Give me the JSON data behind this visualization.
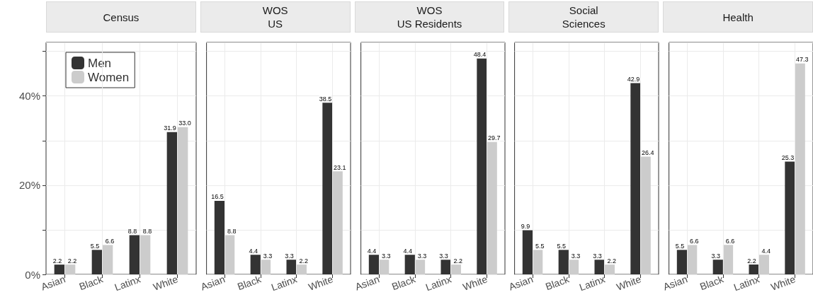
{
  "chart_data": [
    {
      "type": "bar",
      "title": "Census",
      "categories": [
        "Asian",
        "Black",
        "Latinx",
        "White"
      ],
      "series": [
        {
          "name": "Men",
          "color": "#333333",
          "values": [
            2.2,
            5.5,
            8.8,
            31.9
          ],
          "value_labels": [
            "2.2",
            "5.5",
            "8.8",
            "31.9"
          ]
        },
        {
          "name": "Women",
          "color": "#cccccc",
          "values": [
            2.2,
            6.6,
            8.8,
            33.0
          ],
          "value_labels": [
            "2.2",
            "6.6",
            "8.8",
            "33.0"
          ]
        }
      ],
      "ylim": [
        0,
        52
      ],
      "yticks": [
        {
          "value": 0,
          "label": "0%"
        },
        {
          "value": 10,
          "label": null
        },
        {
          "value": 20,
          "label": "20%"
        },
        {
          "value": 30,
          "label": null
        },
        {
          "value": 40,
          "label": "40%"
        }
      ],
      "grid": true,
      "legend": "top left"
    },
    {
      "type": "bar",
      "title": "WOS\nUS",
      "categories": [
        "Asian",
        "Black",
        "Latinx",
        "White"
      ],
      "series": [
        {
          "color": "#333333",
          "values": [
            16.5,
            4.4,
            3.3,
            38.5
          ],
          "value_labels": [
            "16.5",
            "4.4",
            "3.3",
            "38.5"
          ]
        },
        {
          "color": "#cccccc",
          "values": [
            8.8,
            3.3,
            2.2,
            23.1
          ],
          "value_labels": [
            "8.8",
            "3.3",
            "2.2",
            "23.1"
          ]
        }
      ],
      "ylim": [
        0,
        52
      ],
      "yticks": [
        0,
        10,
        20,
        30,
        40
      ],
      "grid": true,
      "tick_labels": "x"
    },
    {
      "type": "bar",
      "title": "WOS\nUS Residents",
      "categories": [
        "Asian",
        "Black",
        "Latinx",
        "White"
      ],
      "series": [
        {
          "color": "#333333",
          "values": [
            4.4,
            4.4,
            3.3,
            48.4
          ],
          "value_labels": [
            "4.4",
            "4.4",
            "3.3",
            "48.4"
          ]
        },
        {
          "color": "#cccccc",
          "values": [
            3.3,
            3.3,
            2.2,
            29.7
          ],
          "value_labels": [
            "3.3",
            "3.3",
            "2.2",
            "29.7"
          ]
        }
      ],
      "ylim": [
        0,
        52
      ],
      "yticks": [
        0,
        10,
        20,
        30,
        40
      ],
      "grid": true,
      "tick_labels": "x"
    },
    {
      "type": "bar",
      "title": "Social\nSciences",
      "categories": [
        "Asian",
        "Black",
        "Latinx",
        "White"
      ],
      "series": [
        {
          "color": "#333333",
          "values": [
            9.9,
            5.5,
            3.3,
            42.9
          ],
          "value_labels": [
            "9.9",
            "5.5",
            "3.3",
            "42.9"
          ]
        },
        {
          "color": "#cccccc",
          "values": [
            5.5,
            3.3,
            2.2,
            26.4
          ],
          "value_labels": [
            "5.5",
            "3.3",
            "2.2",
            "26.4"
          ]
        }
      ],
      "ylim": [
        0,
        52
      ],
      "yticks": [
        0,
        10,
        20,
        30,
        40
      ],
      "grid": true,
      "tick_labels": "x"
    },
    {
      "type": "bar",
      "title": "Health",
      "categories": [
        "Asian",
        "Black",
        "Latinx",
        "White"
      ],
      "series": [
        {
          "color": "#333333",
          "values": [
            5.5,
            3.3,
            2.2,
            25.3
          ],
          "value_labels": [
            "5.5",
            "3.3",
            "2.2",
            "25.3"
          ]
        },
        {
          "color": "#cccccc",
          "values": [
            6.6,
            6.6,
            4.4,
            47.3
          ],
          "value_labels": [
            "6.6",
            "6.6",
            "4.4",
            "47.3"
          ]
        }
      ],
      "ylim": [
        0,
        52
      ],
      "yticks": [
        0,
        10,
        20,
        30,
        40
      ],
      "grid": true,
      "tick_labels": "x"
    }
  ]
}
